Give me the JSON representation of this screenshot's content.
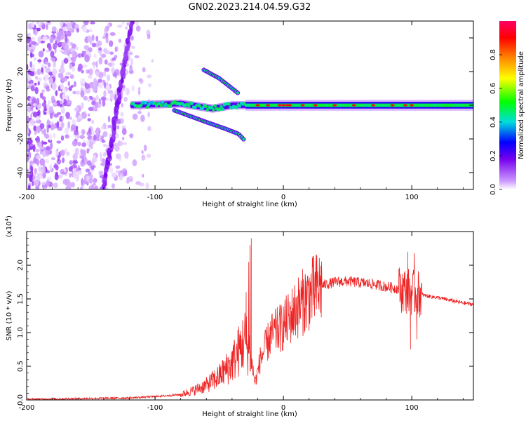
{
  "title": "GN02.2023.214.04.59.G32",
  "chart_data": [
    {
      "type": "heatmap",
      "xlabel": "Height of straight line (km)",
      "ylabel": "Frequency (Hz)",
      "xlim": [
        -200,
        148
      ],
      "ylim": [
        -50,
        50
      ],
      "xticks": [
        "-200",
        "-100",
        "0",
        "100"
      ],
      "yticks": [
        "-40",
        "-20",
        "0",
        "20",
        "40"
      ],
      "colorbar": {
        "label": "Normalized spectral amplitude",
        "range": [
          0,
          1
        ],
        "ticks": [
          "0.0",
          "0.2",
          "0.4",
          "0.6",
          "0.8"
        ],
        "colors": [
          "#ffffff",
          "#cc99ff",
          "#7700ee",
          "#0000ff",
          "#00dddd",
          "#00ff00",
          "#ffff00",
          "#ff8800",
          "#ff0000",
          "#ff0066"
        ]
      },
      "features": [
        {
          "name": "noise-cloud",
          "x_range": [
            -200,
            -90
          ],
          "y_range": [
            -50,
            50
          ]
        },
        {
          "name": "steep-streak-left",
          "x": [
            -140,
            -118
          ],
          "y": [
            -50,
            50
          ]
        },
        {
          "name": "main-band",
          "x": [
            -118,
            -80,
            -55,
            -40,
            -25,
            0,
            50,
            100,
            148
          ],
          "y": [
            0,
            1,
            -2,
            0,
            0,
            0,
            0,
            0,
            0
          ]
        },
        {
          "name": "lower-branch",
          "x": [
            -85,
            -60,
            -45,
            -35,
            -30
          ],
          "y": [
            -3,
            -10,
            -14,
            -17,
            -21
          ]
        },
        {
          "name": "upper-branch",
          "x": [
            -62,
            -50,
            -40,
            -35
          ],
          "y": [
            21,
            16,
            10,
            7
          ]
        }
      ]
    },
    {
      "type": "line",
      "xlabel": "Height of straight line (km)",
      "ylabel": "SNR (10 * v/v)",
      "y_multiplier": "(x10",
      "y_multiplier_exp": "4",
      "xlim": [
        -200,
        148
      ],
      "ylim": [
        0,
        2.5
      ],
      "xticks": [
        "-200",
        "-100",
        "0",
        "100"
      ],
      "yticks": [
        "0.0",
        "0.5",
        "1.0",
        "1.5",
        "2.0"
      ],
      "line_color": "#ee2222",
      "envelope_x": [
        -200,
        -160,
        -120,
        -100,
        -80,
        -70,
        -60,
        -50,
        -40,
        -34,
        -30,
        -26,
        -22,
        -18,
        -10,
        0,
        10,
        20,
        30,
        40,
        50,
        60,
        70,
        80,
        90,
        95,
        100,
        105,
        110,
        120,
        130,
        140,
        148
      ],
      "envelope_y": [
        0.01,
        0.02,
        0.03,
        0.05,
        0.08,
        0.14,
        0.22,
        0.35,
        0.55,
        0.75,
        0.9,
        0.7,
        0.25,
        0.6,
        0.95,
        1.1,
        1.35,
        1.55,
        1.7,
        1.75,
        1.76,
        1.74,
        1.72,
        1.68,
        1.65,
        1.63,
        1.6,
        1.58,
        1.55,
        1.52,
        1.48,
        1.44,
        1.42
      ],
      "spikes": [
        {
          "x": -25,
          "y": 2.4
        },
        {
          "x": -26,
          "y": 2.3
        },
        {
          "x": -27,
          "y": 2.05
        },
        {
          "x": -29,
          "y": 1.6
        },
        {
          "x": 97,
          "y": 2.2
        },
        {
          "x": 99,
          "y": 0.75
        },
        {
          "x": 102,
          "y": 2.18
        },
        {
          "x": 104,
          "y": 0.9
        }
      ]
    }
  ]
}
